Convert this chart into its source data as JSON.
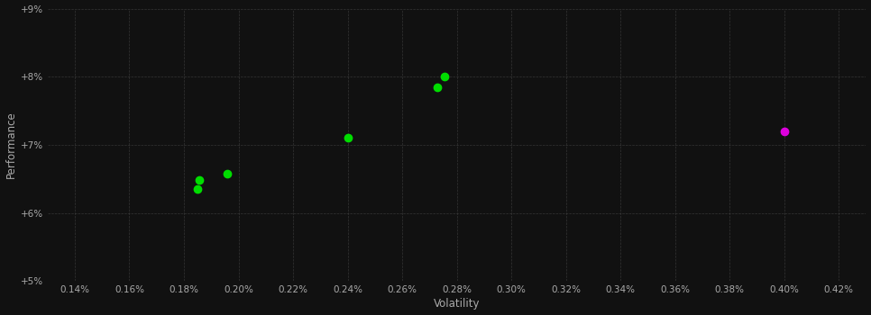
{
  "xlabel": "Volatility",
  "ylabel": "Performance",
  "bg_color": "#111111",
  "plot_bg_color": "#111111",
  "grid_color": "#444444",
  "grid_style": "--",
  "green_points": [
    [
      0.185,
      0.0635
    ],
    [
      0.1855,
      0.0648
    ],
    [
      0.196,
      0.0658
    ],
    [
      0.24,
      0.071
    ],
    [
      0.273,
      0.0785
    ],
    [
      0.2755,
      0.08
    ]
  ],
  "magenta_points": [
    [
      0.4,
      0.072
    ]
  ],
  "green_color": "#00dd00",
  "magenta_color": "#dd00dd",
  "xlim": [
    0.13,
    0.43
  ],
  "ylim": [
    0.05,
    0.09
  ],
  "xticks": [
    0.14,
    0.16,
    0.18,
    0.2,
    0.22,
    0.24,
    0.26,
    0.28,
    0.3,
    0.32,
    0.34,
    0.36,
    0.38,
    0.4,
    0.42
  ],
  "yticks": [
    0.05,
    0.06,
    0.07,
    0.08,
    0.09
  ],
  "tick_color": "#aaaaaa",
  "tick_fontsize": 7.5,
  "axis_label_fontsize": 8.5,
  "marker_size": 6,
  "marker_style": "o"
}
